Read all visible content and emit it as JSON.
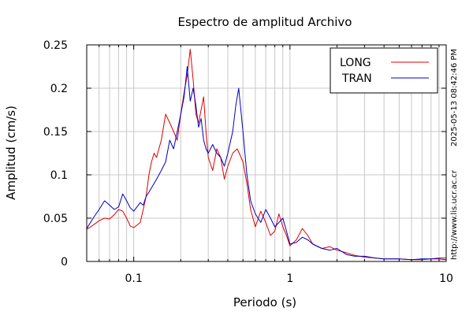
{
  "chart_data": {
    "type": "line",
    "title": "Espectro de amplitud Archivo",
    "xlabel": "Periodo (s)",
    "ylabel": "Amplitud (cm/s)",
    "x_scale": "log",
    "xlim": [
      0.05,
      10
    ],
    "ylim": [
      0,
      0.25
    ],
    "x_tick_labels": [
      "0.1",
      "1",
      "10"
    ],
    "x_tick_values": [
      0.1,
      1,
      10
    ],
    "y_tick_labels": [
      "0",
      "0.05",
      "0.1",
      "0.15",
      "0.2",
      "0.25"
    ],
    "y_tick_values": [
      0,
      0.05,
      0.1,
      0.15,
      0.2,
      0.25
    ],
    "grid": true,
    "legend_position": "top-right",
    "series": [
      {
        "name": "LONG",
        "color": "#e00000",
        "points": [
          [
            0.05,
            0.037
          ],
          [
            0.055,
            0.042
          ],
          [
            0.06,
            0.047
          ],
          [
            0.065,
            0.05
          ],
          [
            0.07,
            0.049
          ],
          [
            0.075,
            0.054
          ],
          [
            0.08,
            0.06
          ],
          [
            0.085,
            0.058
          ],
          [
            0.09,
            0.05
          ],
          [
            0.095,
            0.041
          ],
          [
            0.1,
            0.039
          ],
          [
            0.11,
            0.045
          ],
          [
            0.115,
            0.06
          ],
          [
            0.12,
            0.075
          ],
          [
            0.125,
            0.1
          ],
          [
            0.13,
            0.115
          ],
          [
            0.135,
            0.125
          ],
          [
            0.14,
            0.12
          ],
          [
            0.15,
            0.14
          ],
          [
            0.16,
            0.17
          ],
          [
            0.17,
            0.16
          ],
          [
            0.18,
            0.15
          ],
          [
            0.19,
            0.14
          ],
          [
            0.2,
            0.17
          ],
          [
            0.21,
            0.195
          ],
          [
            0.22,
            0.215
          ],
          [
            0.23,
            0.245
          ],
          [
            0.24,
            0.21
          ],
          [
            0.25,
            0.17
          ],
          [
            0.26,
            0.16
          ],
          [
            0.27,
            0.175
          ],
          [
            0.28,
            0.19
          ],
          [
            0.29,
            0.15
          ],
          [
            0.3,
            0.12
          ],
          [
            0.32,
            0.105
          ],
          [
            0.34,
            0.13
          ],
          [
            0.36,
            0.12
          ],
          [
            0.38,
            0.095
          ],
          [
            0.4,
            0.11
          ],
          [
            0.43,
            0.125
          ],
          [
            0.46,
            0.13
          ],
          [
            0.5,
            0.115
          ],
          [
            0.53,
            0.09
          ],
          [
            0.56,
            0.06
          ],
          [
            0.6,
            0.04
          ],
          [
            0.65,
            0.058
          ],
          [
            0.7,
            0.045
          ],
          [
            0.75,
            0.03
          ],
          [
            0.8,
            0.035
          ],
          [
            0.85,
            0.055
          ],
          [
            0.9,
            0.04
          ],
          [
            0.95,
            0.03
          ],
          [
            1.0,
            0.018
          ],
          [
            1.1,
            0.025
          ],
          [
            1.2,
            0.038
          ],
          [
            1.3,
            0.03
          ],
          [
            1.4,
            0.02
          ],
          [
            1.6,
            0.015
          ],
          [
            1.8,
            0.017
          ],
          [
            2.0,
            0.013
          ],
          [
            2.3,
            0.01
          ],
          [
            2.6,
            0.007
          ],
          [
            3.0,
            0.005
          ],
          [
            3.5,
            0.004
          ],
          [
            4.0,
            0.003
          ],
          [
            5.0,
            0.003
          ],
          [
            6.0,
            0.002
          ],
          [
            7.0,
            0.002
          ],
          [
            8.0,
            0.003
          ],
          [
            9.0,
            0.004
          ],
          [
            10.0,
            0.004
          ]
        ]
      },
      {
        "name": "TRAN",
        "color": "#0000c0",
        "points": [
          [
            0.05,
            0.038
          ],
          [
            0.055,
            0.05
          ],
          [
            0.06,
            0.06
          ],
          [
            0.065,
            0.07
          ],
          [
            0.07,
            0.065
          ],
          [
            0.075,
            0.06
          ],
          [
            0.08,
            0.063
          ],
          [
            0.085,
            0.078
          ],
          [
            0.09,
            0.07
          ],
          [
            0.095,
            0.062
          ],
          [
            0.1,
            0.058
          ],
          [
            0.11,
            0.068
          ],
          [
            0.115,
            0.065
          ],
          [
            0.12,
            0.075
          ],
          [
            0.125,
            0.08
          ],
          [
            0.13,
            0.085
          ],
          [
            0.14,
            0.095
          ],
          [
            0.15,
            0.105
          ],
          [
            0.16,
            0.115
          ],
          [
            0.17,
            0.14
          ],
          [
            0.18,
            0.13
          ],
          [
            0.19,
            0.15
          ],
          [
            0.2,
            0.17
          ],
          [
            0.21,
            0.19
          ],
          [
            0.22,
            0.225
          ],
          [
            0.23,
            0.185
          ],
          [
            0.24,
            0.2
          ],
          [
            0.25,
            0.18
          ],
          [
            0.26,
            0.155
          ],
          [
            0.27,
            0.165
          ],
          [
            0.28,
            0.14
          ],
          [
            0.29,
            0.13
          ],
          [
            0.3,
            0.125
          ],
          [
            0.32,
            0.135
          ],
          [
            0.34,
            0.125
          ],
          [
            0.36,
            0.12
          ],
          [
            0.38,
            0.11
          ],
          [
            0.4,
            0.125
          ],
          [
            0.43,
            0.15
          ],
          [
            0.45,
            0.18
          ],
          [
            0.47,
            0.2
          ],
          [
            0.5,
            0.15
          ],
          [
            0.53,
            0.1
          ],
          [
            0.56,
            0.07
          ],
          [
            0.6,
            0.055
          ],
          [
            0.65,
            0.045
          ],
          [
            0.7,
            0.06
          ],
          [
            0.75,
            0.05
          ],
          [
            0.8,
            0.04
          ],
          [
            0.85,
            0.045
          ],
          [
            0.9,
            0.05
          ],
          [
            0.95,
            0.035
          ],
          [
            1.0,
            0.02
          ],
          [
            1.1,
            0.022
          ],
          [
            1.2,
            0.028
          ],
          [
            1.3,
            0.025
          ],
          [
            1.4,
            0.02
          ],
          [
            1.6,
            0.015
          ],
          [
            1.8,
            0.013
          ],
          [
            2.0,
            0.015
          ],
          [
            2.3,
            0.008
          ],
          [
            2.6,
            0.006
          ],
          [
            3.0,
            0.006
          ],
          [
            3.5,
            0.004
          ],
          [
            4.0,
            0.003
          ],
          [
            5.0,
            0.003
          ],
          [
            6.0,
            0.002
          ],
          [
            7.0,
            0.003
          ],
          [
            8.0,
            0.003
          ],
          [
            9.0,
            0.003
          ],
          [
            10.0,
            0.002
          ]
        ]
      }
    ],
    "side_text": {
      "timestamp": "2025-05-13 08:42:46 PM",
      "website": "http://www.lis.ucr.ac.cr"
    }
  }
}
